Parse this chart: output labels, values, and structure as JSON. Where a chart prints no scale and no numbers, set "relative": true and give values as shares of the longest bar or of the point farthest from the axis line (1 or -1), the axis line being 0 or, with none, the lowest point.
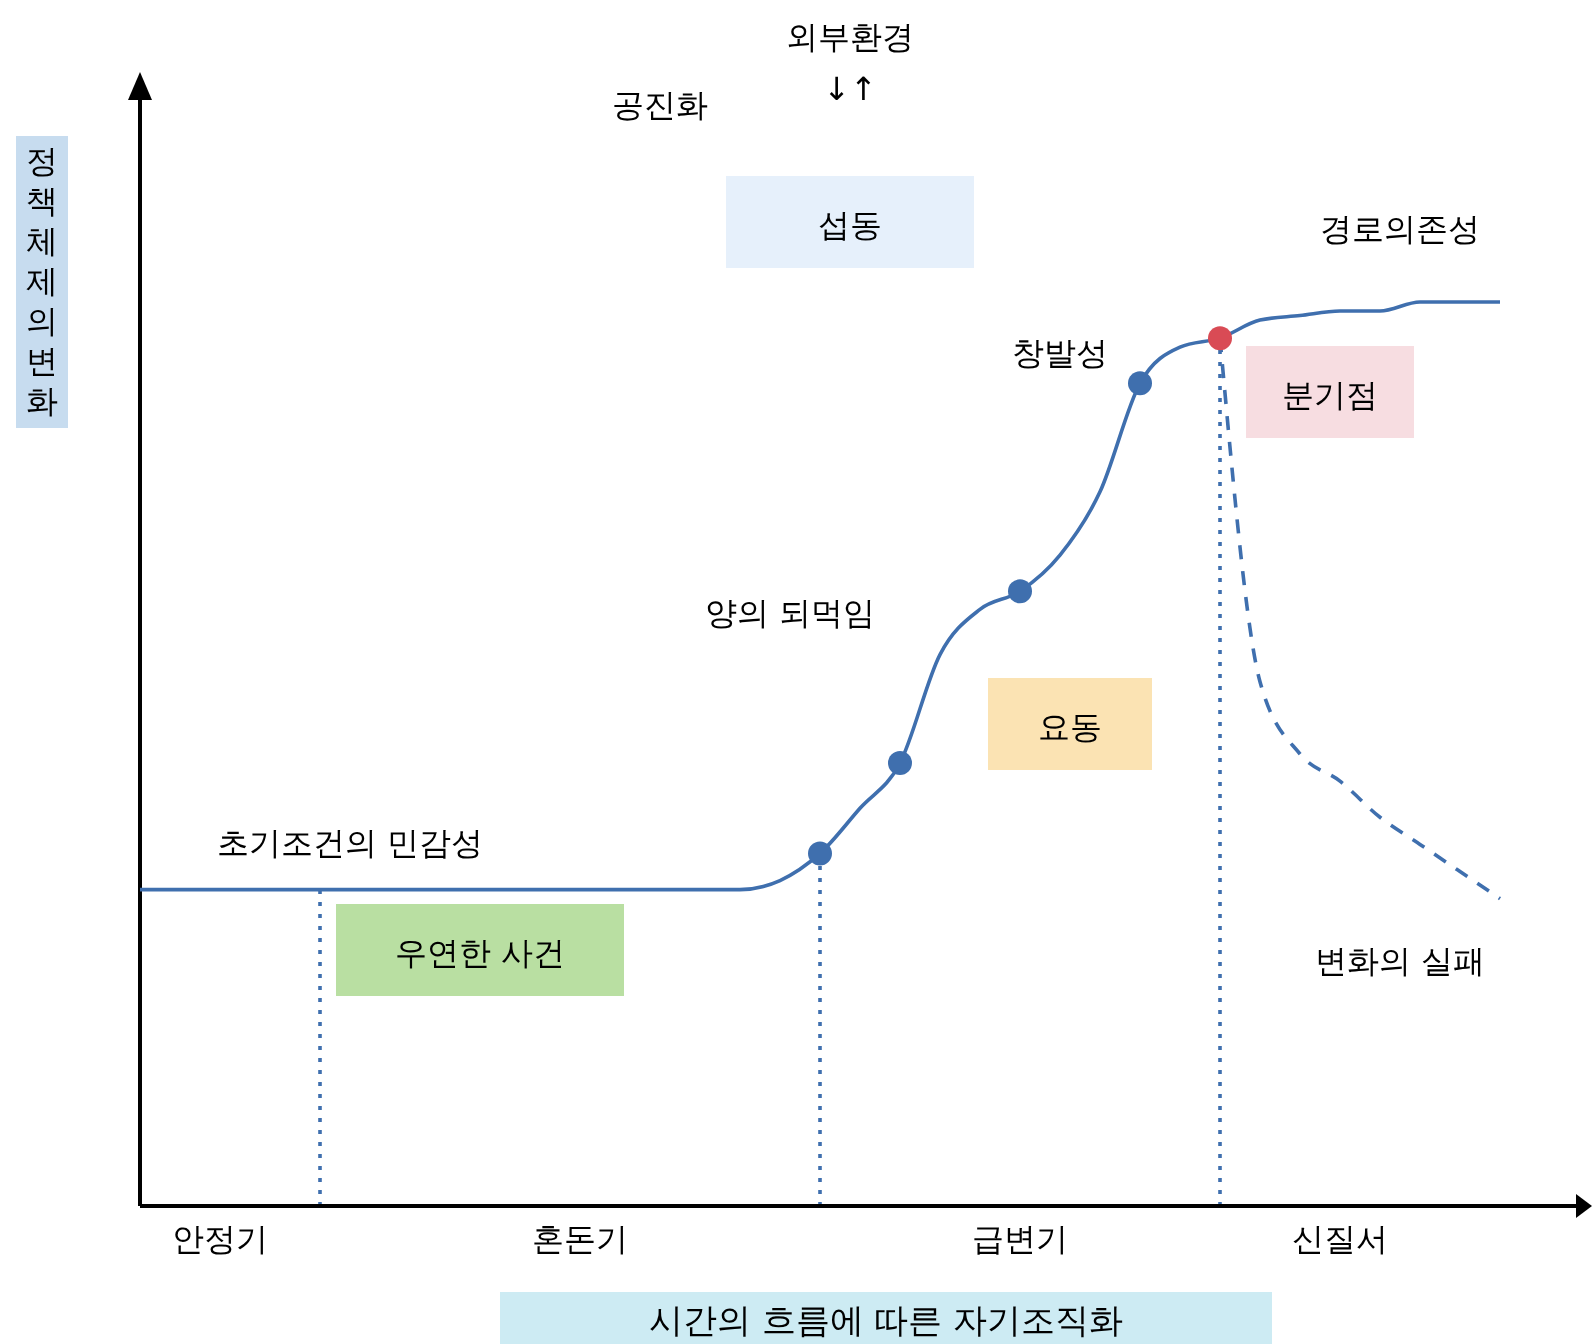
{
  "chart_data": {
    "type": "line",
    "relative": true,
    "xlabel": "시간의 흐름에 따른 자기조직화",
    "ylabel": "정책체제의변화",
    "categories": [
      null,
      null,
      "안정기",
      null,
      null,
      null,
      null,
      null,
      null,
      null,
      null,
      "혼돈기",
      null,
      null,
      null,
      null,
      null,
      null,
      null,
      null,
      null,
      null,
      "급변기",
      null,
      null,
      null,
      null,
      null,
      null,
      null,
      "신질서",
      null,
      null,
      null,
      null,
      null,
      null
    ],
    "series": [
      {
        "color": "#3f6fae",
        "line_style": "solid",
        "values": [
          0.35,
          0.35,
          0.35,
          0.35,
          0.35,
          0.35,
          0.35,
          0.35,
          0.35,
          0.35,
          0.35,
          0.35,
          0.35,
          0.35,
          0.35,
          0.35,
          0.36,
          0.39,
          0.44,
          0.49,
          0.61,
          0.66,
          0.68,
          0.72,
          0.79,
          0.91,
          0.95,
          0.96,
          0.98,
          0.985,
          0.99,
          0.99,
          1.0,
          1.0,
          1.0,
          null,
          null
        ]
      },
      {
        "color": "#3f6fae",
        "line_style": "dashed",
        "values": [
          null,
          null,
          null,
          null,
          null,
          null,
          null,
          null,
          null,
          null,
          null,
          null,
          null,
          null,
          null,
          null,
          null,
          null,
          null,
          null,
          null,
          null,
          null,
          null,
          null,
          null,
          null,
          0.96,
          0.58,
          0.5,
          0.47,
          0.43,
          0.4,
          0.37,
          0.34,
          null,
          null
        ]
      },
      {
        "type": "scatter",
        "marker": "circle",
        "color": "#3f6fae",
        "colors": [
          null,
          null,
          null,
          null,
          null,
          null,
          null,
          null,
          null,
          null,
          null,
          null,
          null,
          null,
          null,
          null,
          null,
          null,
          null,
          null,
          null,
          null,
          null,
          null,
          null,
          null,
          null,
          "#d94b55",
          null,
          null,
          null,
          null,
          null,
          null,
          null,
          null,
          null
        ],
        "values": [
          null,
          null,
          null,
          null,
          null,
          null,
          null,
          null,
          null,
          null,
          null,
          null,
          null,
          null,
          null,
          null,
          null,
          0.39,
          null,
          0.49,
          null,
          null,
          0.68,
          null,
          null,
          0.91,
          null,
          0.96,
          null,
          null,
          null,
          null,
          null,
          null,
          null,
          null,
          null
        ]
      }
    ],
    "annotations": [
      "외부환경",
      "↓↑",
      "공진화",
      "섭동",
      "경로의존성",
      "창발성",
      "분기점",
      "양의 되먹임",
      "요동",
      "초기조건의 민감성",
      "우연한 사건",
      "변화의 실패"
    ]
  }
}
